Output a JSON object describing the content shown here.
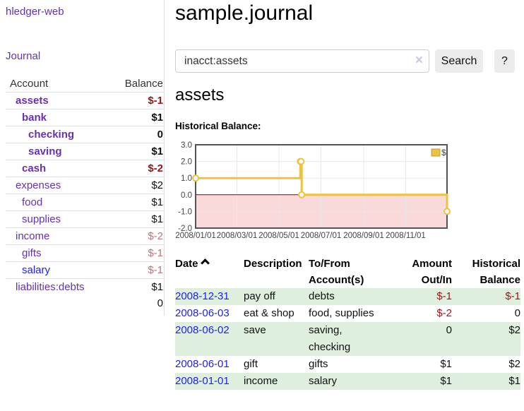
{
  "sidebar": {
    "brand": "hledger-web",
    "journal_label": "Journal",
    "accounts_table": {
      "headers": {
        "account": "Account",
        "balance": "Balance"
      },
      "rows": [
        {
          "name": "assets",
          "depth": 1,
          "bold": true,
          "link": "visited",
          "balance": "$-1",
          "tone": "negative"
        },
        {
          "name": "bank",
          "depth": 2,
          "bold": true,
          "link": "visited",
          "balance": "$1",
          "tone": "normal"
        },
        {
          "name": "checking",
          "depth": 3,
          "bold": true,
          "link": "visited",
          "balance": "0",
          "tone": "normal"
        },
        {
          "name": "saving",
          "depth": 3,
          "bold": true,
          "link": "visited",
          "balance": "$1",
          "tone": "normal"
        },
        {
          "name": "cash",
          "depth": 2,
          "bold": true,
          "link": "visited",
          "balance": "$-2",
          "tone": "negative"
        },
        {
          "name": "expenses",
          "depth": 1,
          "bold": false,
          "link": "visited",
          "balance": "$2",
          "tone": "normal"
        },
        {
          "name": "food",
          "depth": 2,
          "bold": false,
          "link": "visited",
          "balance": "$1",
          "tone": "normal"
        },
        {
          "name": "supplies",
          "depth": 2,
          "bold": false,
          "link": "visited",
          "balance": "$1",
          "tone": "normal"
        },
        {
          "name": "income",
          "depth": 1,
          "bold": false,
          "link": "visited",
          "balance": "$-2",
          "tone": "negative-dim"
        },
        {
          "name": "gifts",
          "depth": 2,
          "bold": false,
          "link": "visited",
          "balance": "$-1",
          "tone": "negative-dim"
        },
        {
          "name": "salary",
          "depth": 2,
          "bold": false,
          "link": "unvisited",
          "balance": "$-1",
          "tone": "negative-dim"
        },
        {
          "name": "liabilities:debts",
          "depth": 1,
          "bold": false,
          "link": "visited",
          "balance": "$1",
          "tone": "normal"
        }
      ],
      "total": "0"
    }
  },
  "header": {
    "title": "sample.journal"
  },
  "search": {
    "query": "inacct:assets",
    "clear_icon": "×",
    "button_label": "Search",
    "help_label": "?"
  },
  "account_page": {
    "heading": "assets",
    "chart_label": "Historical Balance:"
  },
  "chart_data": {
    "type": "line",
    "step": true,
    "title": "Historical Balance",
    "series": [
      {
        "name": "$",
        "color": "#edc240",
        "points": [
          [
            "2008-01-01",
            1
          ],
          [
            "2008-06-01",
            2
          ],
          [
            "2008-06-02",
            2
          ],
          [
            "2008-06-03",
            0
          ],
          [
            "2008-12-31",
            -1
          ]
        ]
      }
    ],
    "x_ticks": [
      {
        "date": "2008-01-01",
        "label": "2008/01/01"
      },
      {
        "date": "2008-03-01",
        "label": "2008/03/01"
      },
      {
        "date": "2008-05-01",
        "label": "2008/05/01"
      },
      {
        "date": "2008-07-01",
        "label": "2008/07/01"
      },
      {
        "date": "2008-09-01",
        "label": "2008/09/01"
      },
      {
        "date": "2008-11-01",
        "label": "2008/11/01"
      }
    ],
    "y_ticks": [
      {
        "value": 3,
        "label": "3.0"
      },
      {
        "value": 2,
        "label": "2.0"
      },
      {
        "value": 1,
        "label": "1.0"
      },
      {
        "value": 0,
        "label": "0.0"
      },
      {
        "value": -1,
        "label": "-1.0"
      },
      {
        "value": -2,
        "label": "-2.0"
      }
    ],
    "xlim": [
      "2008-01-01",
      "2008-12-31"
    ],
    "ylim": [
      -2,
      3
    ],
    "grid": true,
    "legend_position": "top-right",
    "negative_region_color": "#f9d9d9",
    "zero_line_color": "#8b0000",
    "grid_line_color": "#e8e8e8",
    "border_color": "#545454",
    "tick_text_color": "#444444"
  },
  "register_table": {
    "headers": {
      "date": "Date",
      "description": "Description",
      "accounts": "To/From Account(s)",
      "amount": "Amount Out/In",
      "balance": "Historical Balance"
    },
    "rows": [
      {
        "date": "2008-12-31",
        "description": "pay off",
        "accounts": "debts",
        "amount": "$-1",
        "amount_tone": "negative",
        "balance": "$-1",
        "balance_tone": "negative"
      },
      {
        "date": "2008-06-03",
        "description": "eat & shop",
        "accounts": "food, supplies",
        "amount": "$-2",
        "amount_tone": "negative",
        "balance": "0",
        "balance_tone": "normal"
      },
      {
        "date": "2008-06-02",
        "description": "save",
        "accounts": "saving, checking",
        "amount": "0",
        "amount_tone": "normal",
        "balance": "$2",
        "balance_tone": "normal"
      },
      {
        "date": "2008-06-01",
        "description": "gift",
        "accounts": "gifts",
        "amount": "$1",
        "amount_tone": "normal",
        "balance": "$2",
        "balance_tone": "normal"
      },
      {
        "date": "2008-01-01",
        "description": "income",
        "accounts": "salary",
        "amount": "$1",
        "amount_tone": "normal",
        "balance": "$1",
        "balance_tone": "normal"
      }
    ]
  }
}
